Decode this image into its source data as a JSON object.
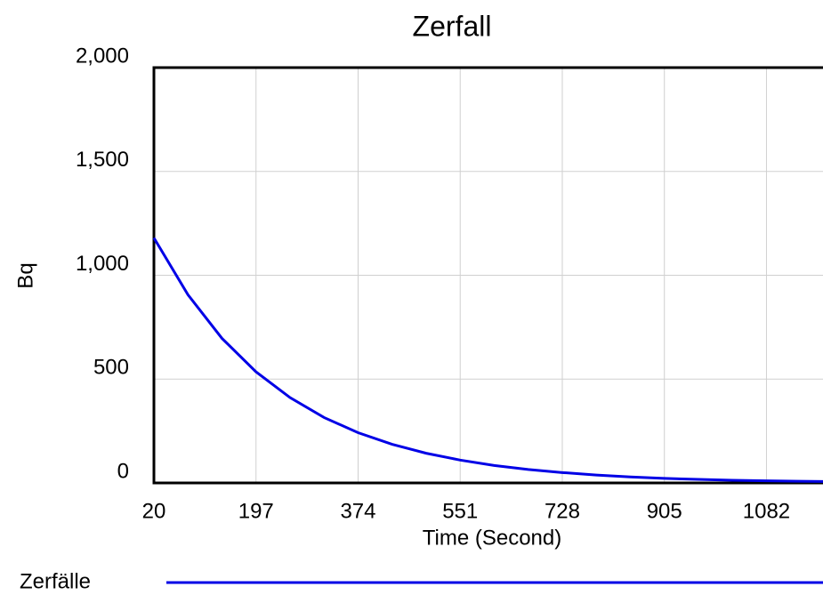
{
  "chart_data": {
    "type": "line",
    "title": "Zerfall",
    "xlabel": "Time (Second)",
    "ylabel": "Bq",
    "x": [
      20,
      79,
      138,
      197,
      256,
      315,
      374,
      433,
      492,
      551,
      610,
      669,
      728,
      787,
      846,
      905,
      964,
      1023,
      1082,
      1141,
      1180
    ],
    "series": [
      {
        "name": "Zerfälle",
        "color": "#0000e6",
        "values": [
          1180,
          906,
          696,
          535,
          411,
          315,
          242,
          186,
          143,
          110,
          84,
          65,
          50,
          38,
          29,
          22,
          17,
          13,
          10,
          8,
          7
        ]
      }
    ],
    "xlim": [
      20,
      1180
    ],
    "xticks": [
      20,
      197,
      374,
      551,
      728,
      905,
      1082
    ],
    "ylim": [
      0,
      2000
    ],
    "yticks": [
      0,
      {
        "value": 500,
        "label": "500"
      },
      {
        "value": 1000,
        "label": "1,000"
      },
      {
        "value": 1500,
        "label": "1,500"
      },
      {
        "value": 2000,
        "label": "2,000"
      }
    ],
    "grid": true
  }
}
